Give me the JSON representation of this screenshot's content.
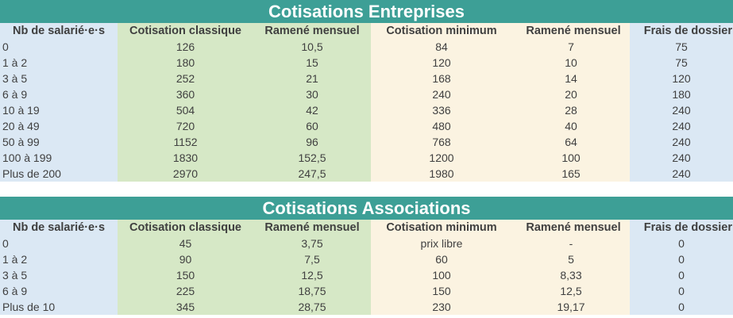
{
  "tables": [
    {
      "title": "Cotisations Entreprises",
      "headers": [
        "Nb de salarié·e·s",
        "Cotisation classique",
        "Ramené mensuel",
        "Cotisation minimum",
        "Ramené mensuel",
        "Frais de dossier"
      ],
      "rows": [
        [
          "0",
          "126",
          "10,5",
          "84",
          "7",
          "75"
        ],
        [
          "1 à 2",
          "180",
          "15",
          "120",
          "10",
          "75"
        ],
        [
          "3 à 5",
          "252",
          "21",
          "168",
          "14",
          "120"
        ],
        [
          "6 à 9",
          "360",
          "30",
          "240",
          "20",
          "180"
        ],
        [
          "10 à 19",
          "504",
          "42",
          "336",
          "28",
          "240"
        ],
        [
          "20 à 49",
          "720",
          "60",
          "480",
          "40",
          "240"
        ],
        [
          "50 à 99",
          "1152",
          "96",
          "768",
          "64",
          "240"
        ],
        [
          "100 à 199",
          "1830",
          "152,5",
          "1200",
          "100",
          "240"
        ],
        [
          "Plus de 200",
          "2970",
          "247,5",
          "1980",
          "165",
          "240"
        ]
      ]
    },
    {
      "title": "Cotisations Associations",
      "headers": [
        "Nb de salarié·e·s",
        "Cotisation classique",
        "Ramené mensuel",
        "Cotisation minimum",
        "Ramené mensuel",
        "Frais de dossier"
      ],
      "rows": [
        [
          "0",
          "45",
          "3,75",
          "prix libre",
          "-",
          "0"
        ],
        [
          "1 à 2",
          "90",
          "7,5",
          "60",
          "5",
          "0"
        ],
        [
          "3 à 5",
          "150",
          "12,5",
          "100",
          "8,33",
          "0"
        ],
        [
          "6 à 9",
          "225",
          "18,75",
          "150",
          "12,5",
          "0"
        ],
        [
          "Plus de 10",
          "345",
          "28,75",
          "230",
          "19,17",
          "0"
        ]
      ]
    }
  ]
}
